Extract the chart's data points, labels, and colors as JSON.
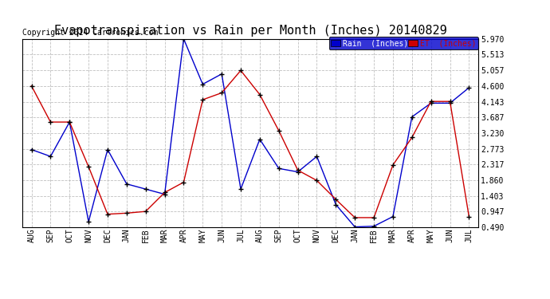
{
  "title": "Evapotranspiration vs Rain per Month (Inches) 20140829",
  "copyright": "Copyright 2014 Cartronics.com",
  "months": [
    "AUG",
    "SEP",
    "OCT",
    "NOV",
    "DEC",
    "JAN",
    "FEB",
    "MAR",
    "APR",
    "MAY",
    "JUN",
    "JUL",
    "AUG",
    "SEP",
    "OCT",
    "NOV",
    "DEC",
    "JAN",
    "FEB",
    "MAR",
    "APR",
    "MAY",
    "JUN",
    "JUL"
  ],
  "rain": [
    2.75,
    2.55,
    3.55,
    0.65,
    2.75,
    1.75,
    1.6,
    1.45,
    5.97,
    4.65,
    4.95,
    1.6,
    3.05,
    2.2,
    2.1,
    2.55,
    1.15,
    0.5,
    0.52,
    0.8,
    3.7,
    4.1,
    4.1,
    4.55
  ],
  "et": [
    4.6,
    3.55,
    3.55,
    2.25,
    0.87,
    0.9,
    0.95,
    1.5,
    1.8,
    4.2,
    4.4,
    5.05,
    4.35,
    3.3,
    2.15,
    1.85,
    1.3,
    0.77,
    0.77,
    2.3,
    3.1,
    4.15,
    4.15,
    0.8
  ],
  "rain_color": "#0000cc",
  "et_color": "#cc0000",
  "background_color": "#ffffff",
  "grid_color": "#c0c0c0",
  "title_fontsize": 11,
  "copyright_fontsize": 7,
  "yticks": [
    0.49,
    0.947,
    1.403,
    1.86,
    2.317,
    2.773,
    3.23,
    3.687,
    4.143,
    4.6,
    5.057,
    5.513,
    5.97
  ],
  "ymin": 0.49,
  "ymax": 5.97,
  "legend_rain_label": "Rain  (Inches)",
  "legend_et_label": "ET  (Inches)"
}
